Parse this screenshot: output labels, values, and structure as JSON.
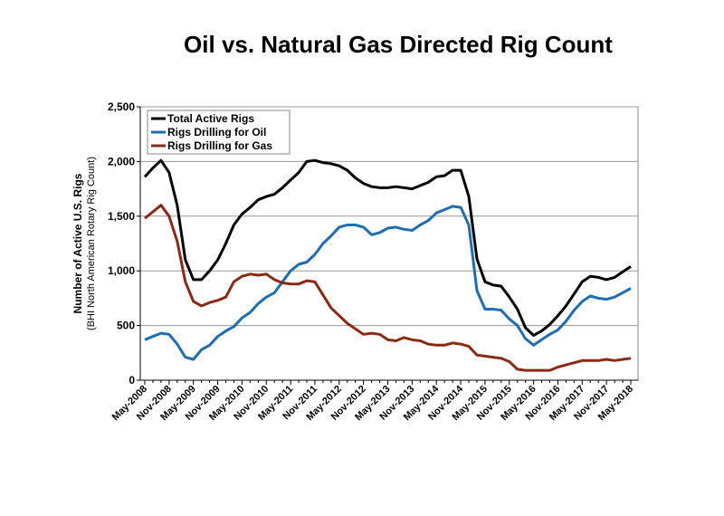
{
  "chart_data": {
    "type": "line",
    "title": "Oil vs. Natural Gas Directed Rig Count",
    "ylabel": [
      "Number of Active U.S. Rigs",
      "(BHI North American Rotary Rig Count)"
    ],
    "categories": [
      "May-2008",
      null,
      null,
      "Nov-2008",
      null,
      null,
      "May-2009",
      null,
      null,
      "Nov-2009",
      null,
      null,
      "May-2010",
      null,
      null,
      "Nov-2010",
      null,
      null,
      "May-2011",
      null,
      null,
      "Nov-2011",
      null,
      null,
      "May-2012",
      null,
      null,
      "Nov-2012",
      null,
      null,
      "May-2013",
      null,
      null,
      "Nov-2013",
      null,
      null,
      "May-2014",
      null,
      null,
      "Nov-2014",
      null,
      null,
      "May-2015",
      null,
      null,
      "Nov-2015",
      null,
      null,
      "May-2016",
      null,
      null,
      "Nov-2016",
      null,
      null,
      "May-2017",
      null,
      null,
      "Nov-2017",
      null,
      null,
      "May-2018"
    ],
    "series": [
      {
        "name": "Total Active Rigs",
        "color": "#000000",
        "values": [
          1860,
          1940,
          2010,
          1900,
          1600,
          1100,
          920,
          920,
          1000,
          1100,
          1250,
          1420,
          1520,
          1580,
          1650,
          1680,
          1700,
          1760,
          1830,
          1900,
          2000,
          2010,
          1990,
          1980,
          1960,
          1920,
          1850,
          1800,
          1770,
          1760,
          1760,
          1770,
          1760,
          1750,
          1780,
          1810,
          1860,
          1870,
          1920,
          1920,
          1680,
          1110,
          900,
          870,
          860,
          760,
          650,
          480,
          410,
          450,
          510,
          590,
          680,
          790,
          900,
          950,
          940,
          920,
          940,
          990,
          1040
        ]
      },
      {
        "name": "Rigs Drilling for Oil",
        "color": "#1f6db5",
        "values": [
          370,
          400,
          430,
          420,
          330,
          210,
          190,
          280,
          320,
          400,
          450,
          490,
          570,
          620,
          700,
          760,
          800,
          900,
          1000,
          1060,
          1080,
          1150,
          1250,
          1320,
          1400,
          1420,
          1420,
          1400,
          1330,
          1350,
          1390,
          1400,
          1380,
          1370,
          1420,
          1460,
          1530,
          1560,
          1590,
          1580,
          1420,
          820,
          650,
          650,
          640,
          560,
          500,
          380,
          320,
          370,
          420,
          460,
          540,
          640,
          720,
          770,
          750,
          740,
          760,
          800,
          840
        ]
      },
      {
        "name": "Rigs Drilling for Gas",
        "color": "#8b2a14",
        "values": [
          1480,
          1540,
          1600,
          1500,
          1270,
          900,
          720,
          680,
          710,
          730,
          760,
          900,
          950,
          970,
          960,
          970,
          920,
          890,
          880,
          880,
          910,
          900,
          780,
          660,
          590,
          520,
          470,
          420,
          430,
          420,
          370,
          360,
          390,
          370,
          360,
          330,
          320,
          320,
          340,
          330,
          310,
          230,
          220,
          210,
          200,
          170,
          100,
          90,
          90,
          90,
          90,
          120,
          140,
          160,
          180,
          180,
          180,
          190,
          180,
          190,
          200
        ]
      }
    ],
    "ylim": [
      0,
      2500
    ],
    "yticks": [
      0,
      500,
      {
        "value": 1000,
        "label": "1,000"
      },
      {
        "value": 1500,
        "label": "1,500"
      },
      {
        "value": 2000,
        "label": "2,000"
      },
      {
        "value": 2500,
        "label": "2,500"
      }
    ],
    "grid": true,
    "legend": "top-left"
  }
}
